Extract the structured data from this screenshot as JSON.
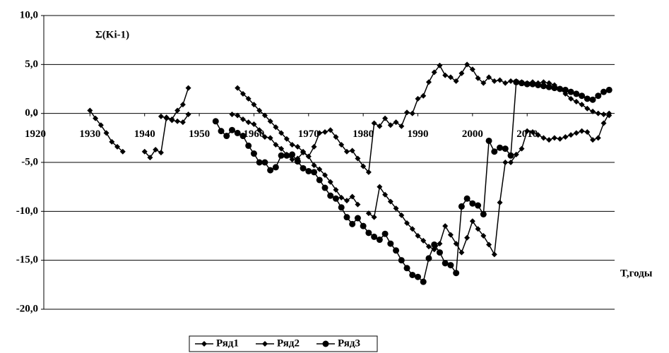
{
  "chart_data": {
    "type": "line",
    "ylabel": "Σ(Ki-1)",
    "xlabel": "T,годы",
    "xlim": [
      1920,
      2026
    ],
    "xticks": [
      1920,
      1930,
      1940,
      1950,
      1960,
      1970,
      1980,
      1990,
      2000,
      2010
    ],
    "ylim": [
      -20,
      10
    ],
    "yticks": [
      {
        "value": -20,
        "label": "-20,0"
      },
      {
        "value": -15,
        "label": "-15,0"
      },
      {
        "value": -10,
        "label": "-10,0"
      },
      {
        "value": -5,
        "label": "-5,0"
      },
      {
        "value": 0,
        "label": "0,0"
      },
      {
        "value": 5,
        "label": "5,0"
      },
      {
        "value": 10,
        "label": "10,0"
      }
    ],
    "grid": true,
    "legend": "bottom",
    "series": [
      {
        "name": "Ряд1",
        "color": "#000000",
        "marker": "diamond",
        "x": [
          1930,
          1931,
          1932,
          1933,
          1934,
          1935,
          1936,
          1937,
          1940,
          1941,
          1942,
          1943,
          1944,
          1945,
          1946,
          1947,
          1948,
          1949,
          1957,
          1958,
          1959,
          1960,
          1961,
          1962,
          1963,
          1964,
          1965,
          1966,
          1967,
          1968,
          1969,
          1970,
          1971,
          1972,
          1973,
          1974,
          1975,
          1976,
          1977,
          1978,
          1979,
          1980,
          1981,
          1982,
          1983,
          1984,
          1985,
          1986,
          1987,
          1988,
          1989,
          1990,
          1991,
          1992,
          1993,
          1994,
          1995,
          1996,
          1997,
          1998,
          1999,
          2000,
          2001,
          2002,
          2003,
          2004,
          2005,
          2006,
          2007,
          2008,
          2009,
          2010,
          2011,
          2012,
          2013,
          2014,
          2015,
          2016,
          2017,
          2018,
          2019,
          2020,
          2021,
          2022,
          2023,
          2024,
          2025
        ],
        "values": [
          0.3,
          -0.5,
          -1.2,
          -2.0,
          -2.9,
          -3.4,
          -3.9,
          null,
          -3.9,
          -4.5,
          -3.7,
          -4.0,
          -0.4,
          -0.6,
          0.3,
          0.9,
          2.6,
          null,
          2.6,
          2.0,
          1.5,
          0.9,
          0.3,
          -0.2,
          -0.8,
          -1.4,
          -2.0,
          -2.6,
          -3.2,
          -3.4,
          -3.9,
          -4.4,
          -3.4,
          -2.0,
          -1.9,
          -1.7,
          -2.4,
          -3.2,
          -3.9,
          -3.8,
          -4.6,
          -5.4,
          -6.0,
          -1.0,
          -1.3,
          -0.5,
          -1.2,
          -0.9,
          -1.3,
          0.1,
          0.0,
          1.5,
          1.8,
          3.2,
          4.2,
          4.9,
          3.9,
          3.7,
          3.3,
          4.1,
          5.0,
          4.5,
          3.6,
          3.1,
          3.7,
          3.3,
          3.4,
          3.1,
          3.3,
          3.3,
          3.2,
          3.1,
          3.2,
          3.1,
          3.2,
          3.1,
          2.9,
          2.5,
          2.0,
          1.5,
          1.2,
          0.9,
          0.5,
          0.2,
          0.0,
          -0.1,
          -0.2
        ]
      },
      {
        "name": "Ряд2",
        "color": "#000000",
        "marker": "diamond",
        "x": [
          1943,
          1944,
          1945,
          1946,
          1947,
          1948,
          1949,
          1956,
          1957,
          1958,
          1959,
          1960,
          1961,
          1962,
          1963,
          1964,
          1965,
          1966,
          1967,
          1968,
          1969,
          1970,
          1971,
          1972,
          1973,
          1974,
          1975,
          1976,
          1977,
          1978,
          1979,
          1980,
          1981,
          1982,
          1983,
          1984,
          1985,
          1986,
          1987,
          1988,
          1989,
          1990,
          1991,
          1992,
          1993,
          1994,
          1995,
          1996,
          1997,
          1998,
          1999,
          2000,
          2001,
          2002,
          2003,
          2004,
          2005,
          2006,
          2007,
          2008,
          2009,
          2010,
          2011,
          2012,
          2013,
          2014,
          2015,
          2016,
          2017,
          2018,
          2019,
          2020,
          2021,
          2022,
          2023,
          2024,
          2025
        ],
        "values": [
          -0.3,
          -0.5,
          -0.7,
          -0.8,
          -0.9,
          -0.1,
          null,
          -0.1,
          -0.2,
          -0.6,
          -0.9,
          -1.1,
          -1.7,
          -2.4,
          -2.5,
          -3.2,
          -3.6,
          -4.2,
          -4.7,
          -4.6,
          -4.0,
          -4.4,
          -5.3,
          -5.7,
          -6.3,
          -7.0,
          -7.8,
          -8.6,
          -8.9,
          -8.5,
          -9.3,
          null,
          -10.2,
          -10.6,
          -7.5,
          -8.3,
          -9.0,
          -9.7,
          -10.4,
          -11.2,
          -11.8,
          -12.5,
          -13.0,
          -13.6,
          -13.9,
          -13.3,
          -11.5,
          -12.4,
          -13.3,
          -14.2,
          -12.7,
          -11.0,
          -11.8,
          -12.5,
          -13.4,
          -14.4,
          -9.1,
          -5.0,
          -5.0,
          -4.2,
          -3.6,
          -1.8,
          -1.9,
          -2.2,
          -2.5,
          -2.7,
          -2.5,
          -2.6,
          -2.4,
          -2.2,
          -2.0,
          -1.8,
          -1.9,
          -2.7,
          -2.5,
          -1.0,
          0.0
        ]
      },
      {
        "name": "Ряд3",
        "color": "#000000",
        "marker": "circle",
        "x": [
          1953,
          1954,
          1955,
          1956,
          1957,
          1958,
          1959,
          1960,
          1961,
          1962,
          1963,
          1964,
          1965,
          1966,
          1967,
          1968,
          1969,
          1970,
          1971,
          1972,
          1973,
          1974,
          1975,
          1976,
          1977,
          1978,
          1979,
          1980,
          1981,
          1982,
          1983,
          1984,
          1985,
          1986,
          1987,
          1988,
          1989,
          1990,
          1991,
          1992,
          1993,
          1994,
          1995,
          1996,
          1997,
          1998,
          1999,
          2000,
          2001,
          2002,
          2003,
          2004,
          2005,
          2006,
          2007,
          2008,
          2009,
          2010,
          2011,
          2012,
          2013,
          2014,
          2015,
          2016,
          2017,
          2018,
          2019,
          2020,
          2021,
          2022,
          2023,
          2024,
          2025
        ],
        "values": [
          -0.8,
          -1.8,
          -2.3,
          -1.7,
          -2.0,
          -2.3,
          -3.3,
          -4.1,
          -5.0,
          -5.0,
          -5.8,
          -5.5,
          -4.3,
          -4.3,
          -4.2,
          -4.9,
          -5.6,
          -5.9,
          -6.0,
          -6.8,
          -7.6,
          -8.4,
          -8.7,
          -9.6,
          -10.6,
          -11.3,
          -10.7,
          -11.5,
          -12.2,
          -12.6,
          -12.9,
          -12.3,
          -13.3,
          -14.0,
          -15.0,
          -15.8,
          -16.5,
          -16.7,
          -17.2,
          -14.8,
          -13.4,
          -14.2,
          -15.3,
          -15.5,
          -16.3,
          -9.5,
          -8.7,
          -9.2,
          -9.4,
          -10.3,
          -2.8,
          -3.9,
          -3.5,
          -3.6,
          -4.3,
          3.2,
          3.1,
          3.0,
          3.0,
          2.9,
          2.8,
          2.7,
          2.6,
          2.5,
          2.4,
          2.2,
          2.0,
          1.8,
          1.5,
          1.4,
          1.8,
          2.2,
          2.4
        ]
      }
    ]
  }
}
